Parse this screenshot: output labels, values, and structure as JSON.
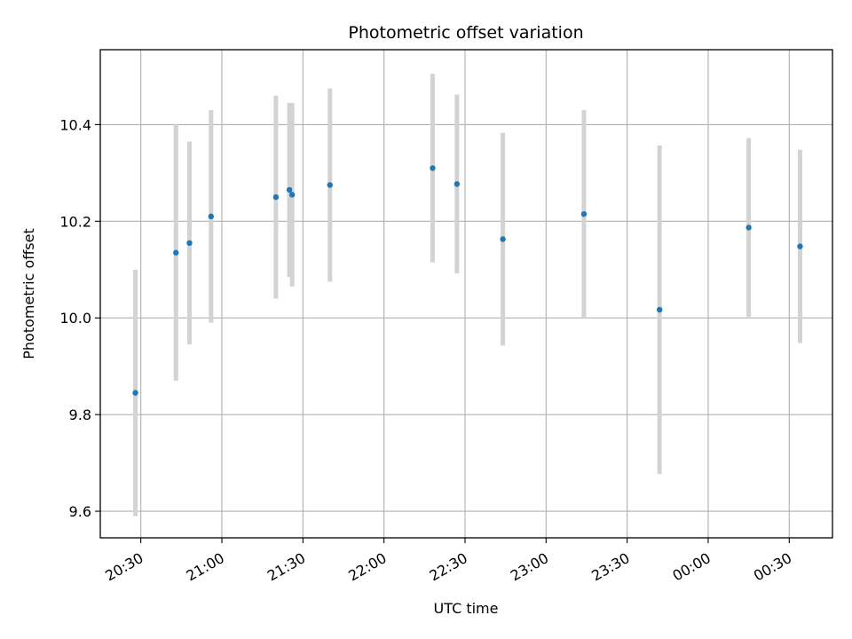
{
  "chart_data": {
    "type": "scatter",
    "title": "Photometric offset variation",
    "xlabel": "UTC time",
    "ylabel": "Photometric offset",
    "x_ticks": [
      "20:30",
      "21:00",
      "21:30",
      "22:00",
      "22:30",
      "23:00",
      "23:30",
      "00:00",
      "00:30"
    ],
    "y_ticks": [
      "9.6",
      "9.8",
      "10.0",
      "10.2",
      "10.4"
    ],
    "xlim": [
      "20:15",
      "00:46"
    ],
    "ylim": [
      9.545,
      10.555
    ],
    "grid": true,
    "colors": {
      "point": "#1f77b4",
      "errorbar": "#d3d3d3",
      "grid": "#b0b0b0"
    },
    "points": [
      {
        "x": "20:28",
        "y": 9.845,
        "yerr": 0.255
      },
      {
        "x": "20:43",
        "y": 10.135,
        "yerr": 0.265
      },
      {
        "x": "20:48",
        "y": 10.155,
        "yerr": 0.21
      },
      {
        "x": "20:56",
        "y": 10.21,
        "yerr": 0.22
      },
      {
        "x": "21:20",
        "y": 10.25,
        "yerr": 0.21
      },
      {
        "x": "21:25",
        "y": 10.265,
        "yerr": 0.18
      },
      {
        "x": "21:26",
        "y": 10.255,
        "yerr": 0.19
      },
      {
        "x": "21:40",
        "y": 10.275,
        "yerr": 0.2
      },
      {
        "x": "22:18",
        "y": 10.31,
        "yerr": 0.195
      },
      {
        "x": "22:27",
        "y": 10.277,
        "yerr": 0.185
      },
      {
        "x": "22:44",
        "y": 10.163,
        "yerr": 0.22
      },
      {
        "x": "23:14",
        "y": 10.215,
        "yerr": 0.215
      },
      {
        "x": "23:42",
        "y": 10.017,
        "yerr": 0.34
      },
      {
        "x": "00:15",
        "y": 10.187,
        "yerr": 0.185
      },
      {
        "x": "00:34",
        "y": 10.148,
        "yerr": 0.2
      }
    ]
  }
}
